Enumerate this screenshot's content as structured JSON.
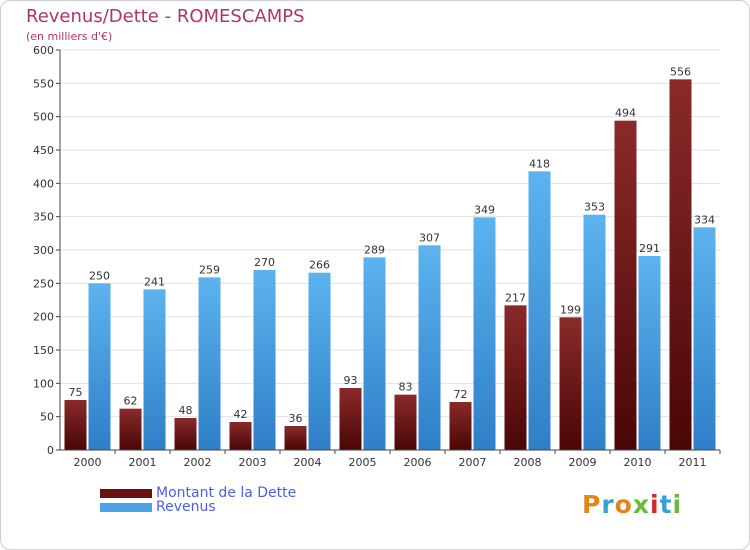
{
  "chart_data": {
    "type": "bar",
    "title": "Revenus/Dette - ROMESCAMPS",
    "subtitle": "(en milliers d'€)",
    "categories": [
      "2000",
      "2001",
      "2002",
      "2003",
      "2004",
      "2005",
      "2006",
      "2007",
      "2008",
      "2009",
      "2010",
      "2011"
    ],
    "series": [
      {
        "name": "Montant de la Dette",
        "color": "#7a1c1c",
        "values": [
          75,
          62,
          48,
          42,
          36,
          93,
          83,
          72,
          217,
          199,
          494,
          556
        ]
      },
      {
        "name": "Revenus",
        "color": "#4aa3e6",
        "values": [
          250,
          241,
          259,
          270,
          266,
          289,
          307,
          349,
          418,
          353,
          291,
          334
        ]
      }
    ],
    "ylim": [
      0,
      600
    ],
    "yticks": [
      0,
      50,
      100,
      150,
      200,
      250,
      300,
      350,
      400,
      450,
      500,
      550,
      600
    ],
    "grid": true,
    "legend": "bottom-left"
  },
  "logo": {
    "text": "Proxiti"
  }
}
